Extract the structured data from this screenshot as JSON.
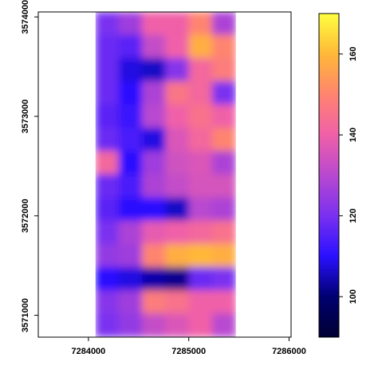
{
  "chart_data": {
    "type": "heatmap",
    "x": [
      7284187,
      7284420,
      7284653,
      7284887,
      7285120,
      7285353
    ],
    "y": [
      3573933,
      3573700,
      3573466,
      3573233,
      3572999,
      3572766,
      3572532,
      3572299,
      3572065,
      3571832,
      3571598,
      3571365,
      3571131,
      3570898
    ],
    "z": [
      [
        120,
        126,
        140,
        140,
        150,
        128
      ],
      [
        118,
        116,
        132,
        140,
        158,
        150
      ],
      [
        118,
        108,
        106,
        122,
        142,
        148
      ],
      [
        118,
        110,
        128,
        146,
        142,
        120
      ],
      [
        116,
        112,
        130,
        140,
        145,
        140
      ],
      [
        118,
        114,
        108,
        136,
        142,
        150
      ],
      [
        142,
        110,
        126,
        134,
        136,
        128
      ],
      [
        118,
        114,
        128,
        132,
        135,
        135
      ],
      [
        116,
        110,
        110,
        106,
        130,
        128
      ],
      [
        120,
        128,
        138,
        140,
        142,
        145
      ],
      [
        124,
        126,
        150,
        158,
        160,
        158
      ],
      [
        110,
        108,
        104,
        102,
        118,
        120
      ],
      [
        122,
        126,
        148,
        145,
        140,
        140
      ],
      [
        120,
        124,
        132,
        136,
        140,
        130
      ]
    ],
    "xlim": [
      7283500,
      7286020
    ],
    "ylim": [
      3570780,
      3574050
    ],
    "xticks": [
      7284000,
      7285000,
      7286000
    ],
    "yticks": [
      3571000,
      3572000,
      3573000,
      3574000
    ],
    "colorbar": {
      "lim": [
        90,
        170
      ],
      "ticks": [
        100,
        120,
        140,
        160
      ]
    },
    "colorscale": [
      [
        90,
        "#000033"
      ],
      [
        100,
        "#000070"
      ],
      [
        110,
        "#2a10ff"
      ],
      [
        120,
        "#7a30f0"
      ],
      [
        130,
        "#b848d0"
      ],
      [
        140,
        "#f060a8"
      ],
      [
        150,
        "#ff8470"
      ],
      [
        160,
        "#ffb838"
      ],
      [
        170,
        "#ffff40"
      ]
    ]
  }
}
